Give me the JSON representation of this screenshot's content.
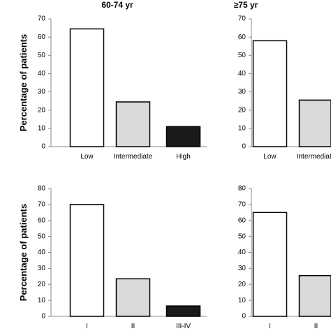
{
  "chart_data": [
    {
      "type": "bar",
      "title": "60-74 yr",
      "ylabel": "Percentage of patients",
      "xlabel": "",
      "ylim": [
        0,
        70
      ],
      "yticks": [
        0,
        10,
        20,
        30,
        40,
        50,
        60,
        70
      ],
      "categories": [
        "Low",
        "Intermediate",
        "High"
      ],
      "values": [
        64.5,
        24.5,
        11
      ],
      "bar_colors": [
        "#ffffff",
        "#d9d9d9",
        "#1a1a1a"
      ]
    },
    {
      "type": "bar",
      "title": "≥75 yr",
      "ylabel": "",
      "xlabel": "",
      "ylim": [
        0,
        70
      ],
      "yticks": [
        0,
        10,
        20,
        30,
        40,
        50,
        60,
        70
      ],
      "categories": [
        "Low",
        "Intermediate"
      ],
      "values": [
        58,
        25.5
      ],
      "bar_colors": [
        "#ffffff",
        "#d9d9d9"
      ]
    },
    {
      "type": "bar",
      "title": "",
      "ylabel": "Percentage of patients",
      "xlabel": "",
      "ylim": [
        0,
        80
      ],
      "yticks": [
        0,
        10,
        20,
        30,
        40,
        50,
        60,
        70,
        80
      ],
      "categories": [
        "I",
        "II",
        "III-IV"
      ],
      "values": [
        70,
        23.5,
        6.5
      ],
      "bar_colors": [
        "#ffffff",
        "#d9d9d9",
        "#1a1a1a"
      ]
    },
    {
      "type": "bar",
      "title": "",
      "ylabel": "",
      "xlabel": "",
      "ylim": [
        0,
        80
      ],
      "yticks": [
        0,
        10,
        20,
        30,
        40,
        50,
        60,
        70,
        80
      ],
      "categories": [
        "I",
        "II"
      ],
      "values": [
        65,
        25.5
      ],
      "bar_colors": [
        "#ffffff",
        "#d9d9d9"
      ]
    }
  ]
}
